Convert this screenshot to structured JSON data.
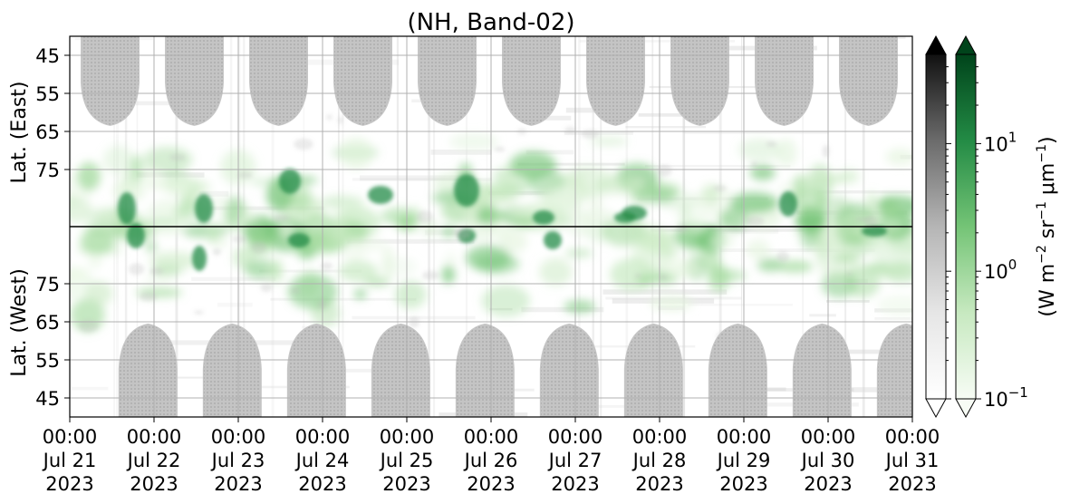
{
  "chart_data": {
    "type": "heatmap",
    "title": "(NH, Band-02)",
    "x": {
      "tick_labels": [
        [
          "00:00",
          "Jul 21",
          "2023"
        ],
        [
          "00:00",
          "Jul 22",
          "2023"
        ],
        [
          "00:00",
          "Jul 23",
          "2023"
        ],
        [
          "00:00",
          "Jul 24",
          "2023"
        ],
        [
          "00:00",
          "Jul 25",
          "2023"
        ],
        [
          "00:00",
          "Jul 26",
          "2023"
        ],
        [
          "00:00",
          "Jul 27",
          "2023"
        ],
        [
          "00:00",
          "Jul 28",
          "2023"
        ],
        [
          "00:00",
          "Jul 29",
          "2023"
        ],
        [
          "00:00",
          "Jul 30",
          "2023"
        ],
        [
          "00:00",
          "Jul 31",
          "2023"
        ]
      ],
      "range": [
        "2023-07-21 00:00",
        "2023-07-31 00:00"
      ],
      "grid": true
    },
    "y_upper": {
      "label": "Lat. (East)",
      "tick_labels": [
        "45",
        "55",
        "65",
        "75"
      ],
      "tick_values": [
        45,
        55,
        65,
        75
      ],
      "range": [
        40,
        90
      ]
    },
    "y_lower": {
      "label": "Lat. (West)",
      "tick_labels": [
        "75",
        "65",
        "55",
        "45"
      ],
      "tick_values": [
        75,
        65,
        55,
        45
      ],
      "range": [
        90,
        40
      ]
    },
    "colorbars": [
      {
        "name": "gray",
        "colormap": "Greys",
        "extend": "both",
        "scale": "log",
        "range": [
          0.1,
          50
        ]
      },
      {
        "name": "green",
        "colormap": "Greens",
        "extend": "both",
        "scale": "log",
        "range": [
          0.1,
          50
        ],
        "tick_labels": [
          "10",
          "10",
          "10"
        ],
        "tick_exponents": [
          "1",
          "0",
          "−1"
        ],
        "tick_values": [
          10,
          1,
          0.1
        ],
        "label_parts": [
          "(W m",
          "−2",
          " sr",
          "−1",
          " μm",
          "−1",
          ")"
        ]
      }
    ],
    "no_data_fill": "#c7c7c7",
    "green_max_color": "#00441b",
    "gray_max_color": "#000000"
  }
}
